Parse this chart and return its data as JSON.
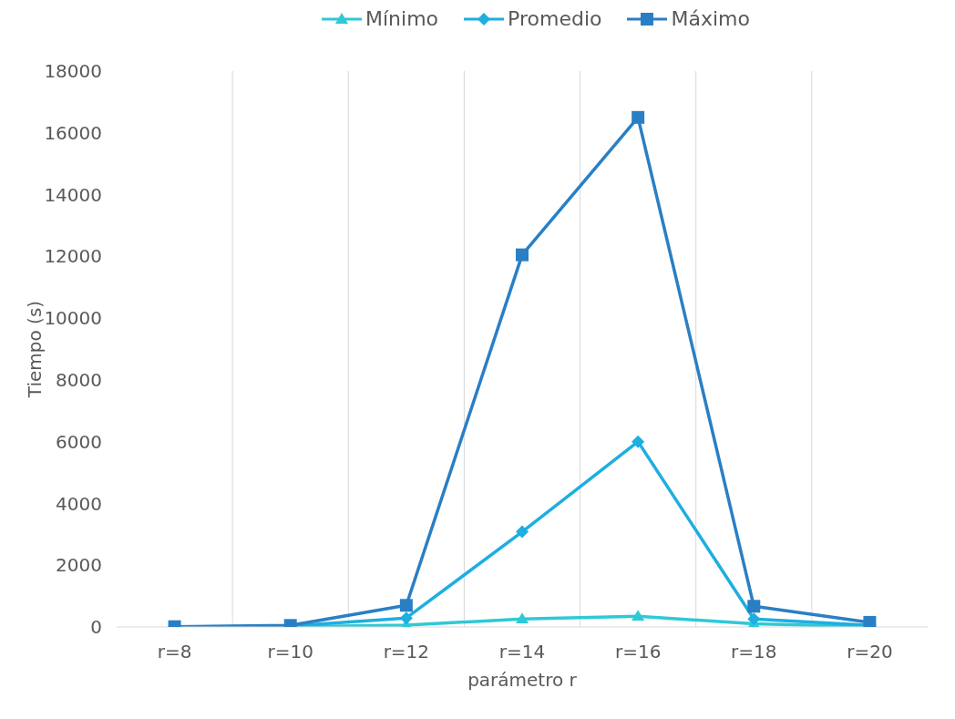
{
  "chart_data": {
    "type": "line",
    "xlabel": "parámetro  r",
    "ylabel": "Tiempo (s)",
    "categories": [
      "r=8",
      "r=10",
      "r=12",
      "r=14",
      "r=16",
      "r=18",
      "r=20"
    ],
    "series": [
      {
        "name": "Mínimo",
        "color": "#2ec9d6",
        "marker": "triangle",
        "values": [
          0,
          10,
          60,
          260,
          350,
          100,
          10
        ]
      },
      {
        "name": "Promedio",
        "color": "#1eaee0",
        "marker": "diamond",
        "values": [
          0,
          30,
          290,
          3080,
          6000,
          260,
          50
        ]
      },
      {
        "name": "Máximo",
        "color": "#2a7fc4",
        "marker": "square",
        "values": [
          10,
          50,
          700,
          12050,
          16500,
          670,
          150
        ]
      }
    ],
    "ylim": [
      0,
      18000
    ],
    "yticks": [
      0,
      2000,
      4000,
      6000,
      8000,
      10000,
      12000,
      14000,
      16000,
      18000
    ],
    "grid": "x",
    "legend": "top"
  }
}
